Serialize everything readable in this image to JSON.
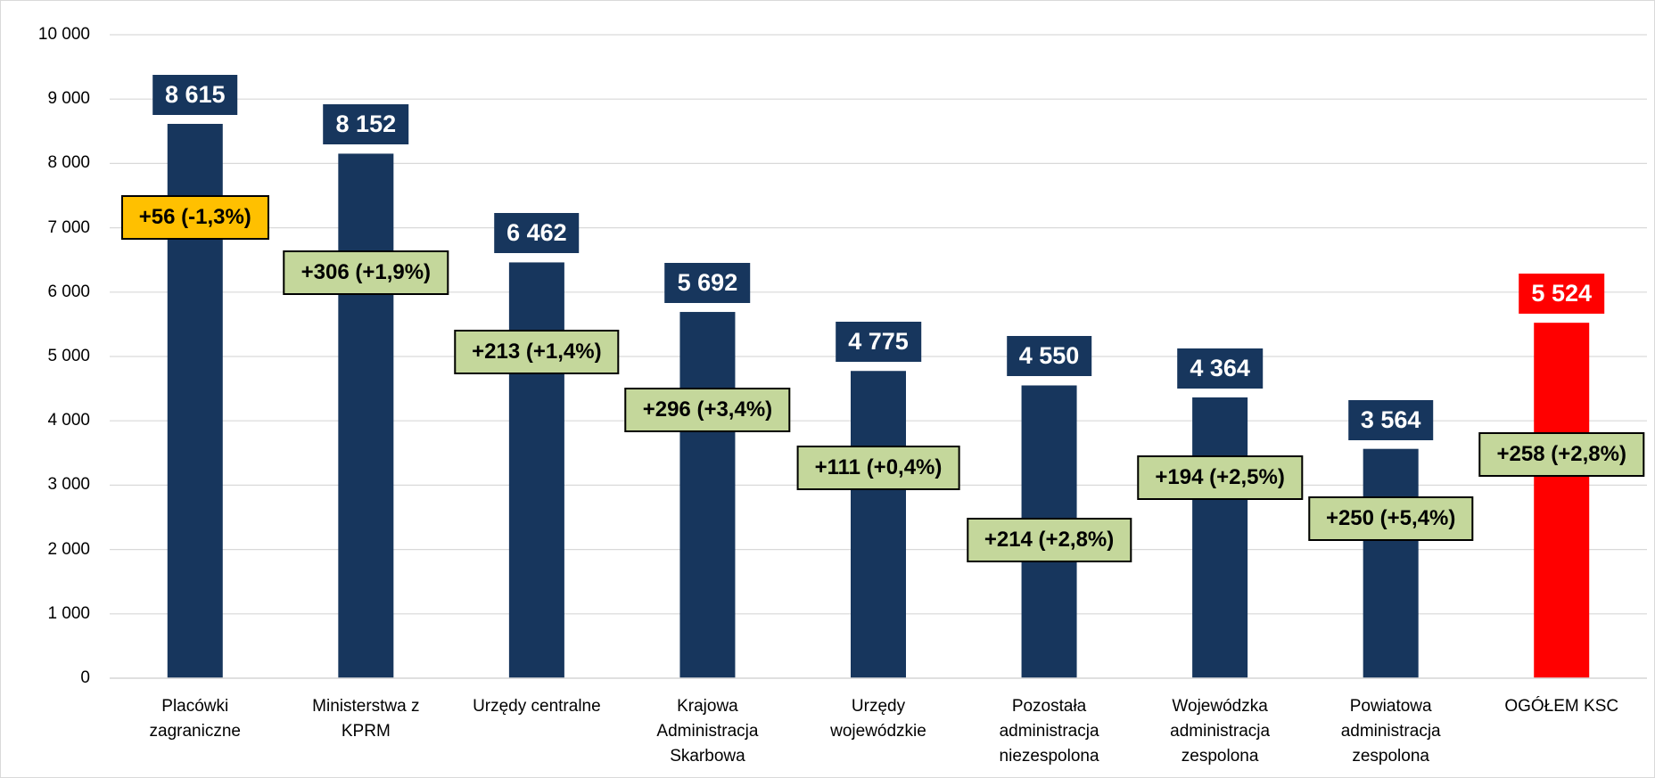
{
  "chart_data": {
    "type": "bar",
    "categories": [
      "Placówki zagraniczne",
      "Ministerstwa z KPRM",
      "Urzędy centralne",
      "Krajowa Administracja Skarbowa",
      "Urzędy wojewódzkie",
      "Pozostała administracja niezespolona",
      "Wojewódzka administracja zespolona",
      "Powiatowa administracja zespolona",
      "OGÓŁEM KSC"
    ],
    "values": [
      8615,
      8152,
      6462,
      5692,
      4775,
      4550,
      4364,
      3564,
      5524
    ],
    "value_labels": [
      "8 615",
      "8 152",
      "6 462",
      "5 692",
      "4 775",
      "4 550",
      "4 364",
      "3 564",
      "5 524"
    ],
    "colors": [
      "#17365d",
      "#17365d",
      "#17365d",
      "#17365d",
      "#17365d",
      "#17365d",
      "#17365d",
      "#17365d",
      "#ff0000"
    ],
    "annotations": [
      "+56 (-1,3%)",
      "+306 (+1,9%)",
      "+213 (+1,4%)",
      "+296 (+3,4%)",
      "+111 (+0,4%)",
      "+214 (+2,8%)",
      "+194 (+2,5%)",
      "+250 (+5,4%)",
      "+258 (+2,8%)"
    ],
    "annotation_colors": [
      "#ffc000",
      "#c4d79b",
      "#c4d79b",
      "#c4d79b",
      "#c4d79b",
      "#c4d79b",
      "#c4d79b",
      "#c4d79b",
      "#c4d79b"
    ],
    "ylim": [
      0,
      10000
    ],
    "yticks": [
      0,
      {
        "value": 1000,
        "label": "1 000"
      },
      {
        "value": 2000,
        "label": "2 000"
      },
      {
        "value": 3000,
        "label": "3 000"
      },
      {
        "value": 4000,
        "label": "4 000"
      },
      {
        "value": 5000,
        "label": "5 000"
      },
      {
        "value": 6000,
        "label": "6 000"
      },
      {
        "value": 7000,
        "label": "7 000"
      },
      {
        "value": 8000,
        "label": "8 000"
      },
      {
        "value": 9000,
        "label": "9 000"
      },
      {
        "value": 10000,
        "label": "10 000"
      }
    ],
    "grid": true
  }
}
